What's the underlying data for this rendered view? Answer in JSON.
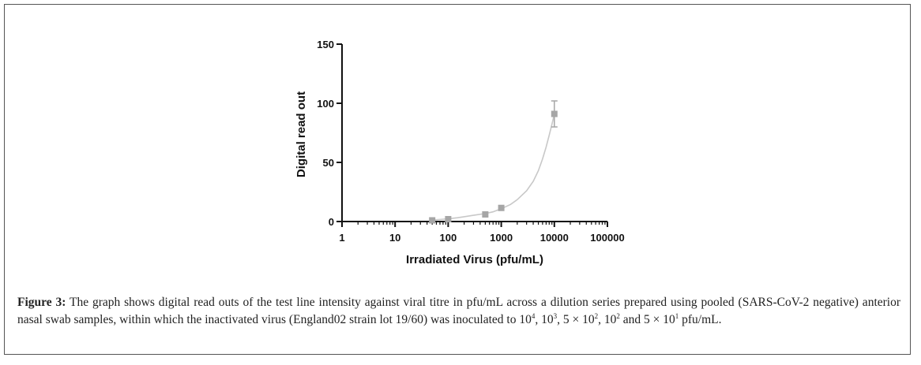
{
  "chart_data": {
    "type": "scatter",
    "title": "",
    "xlabel": "Irradiated Virus (pfu/mL)",
    "ylabel": "Digital read out",
    "xscale": "log",
    "xlim": [
      1,
      100000
    ],
    "ylim": [
      0,
      150
    ],
    "xticks": [
      1,
      10,
      100,
      1000,
      10000,
      100000
    ],
    "xtick_labels": [
      "1",
      "10",
      "100",
      "1000",
      "10000",
      "100000"
    ],
    "yticks": [
      0,
      50,
      100,
      150
    ],
    "ytick_labels": [
      "0",
      "50",
      "100",
      "150"
    ],
    "grid": false,
    "legend": "none",
    "marker_color": "#a6a6a6",
    "curve_color": "#c8c8c8",
    "series": [
      {
        "x": [
          50,
          100,
          500,
          1000,
          10000
        ],
        "y": [
          1,
          2,
          6,
          11.5,
          91
        ],
        "error": [
          0,
          0,
          0,
          0,
          11
        ]
      }
    ],
    "fit_curve": {
      "x": [
        50,
        70,
        100,
        150,
        200,
        300,
        500,
        700,
        1000,
        1500,
        2000,
        3000,
        4000,
        5000,
        6000,
        7000,
        8000,
        9000,
        10000
      ],
      "y": [
        1.3,
        1.7,
        2.3,
        3.2,
        4.1,
        5.3,
        6.7,
        8.2,
        10.8,
        14.5,
        18.5,
        26,
        34,
        43,
        53,
        63,
        73,
        82,
        91
      ]
    }
  },
  "caption": {
    "label": "Figure 3:",
    "line1": " The graph shows digital read outs of the test line intensity against viral titre in pfu/mL across a dilution series prepared using pooled",
    "line2": "(SARS-CoV-2 negative) anterior nasal swab samples, within which the inactivated virus (England02 strain lot 19/60) was inoculated to 10",
    "sup1": "4",
    "sep1": ", 10",
    "sup2": "3",
    "sep2": ", 5 ×",
    "line3a": "10",
    "sup3": "2",
    "sep3": ", 10",
    "sup4": "2",
    "sep4": " and 5 × 10",
    "sup5": "1",
    "end": " pfu/mL."
  }
}
